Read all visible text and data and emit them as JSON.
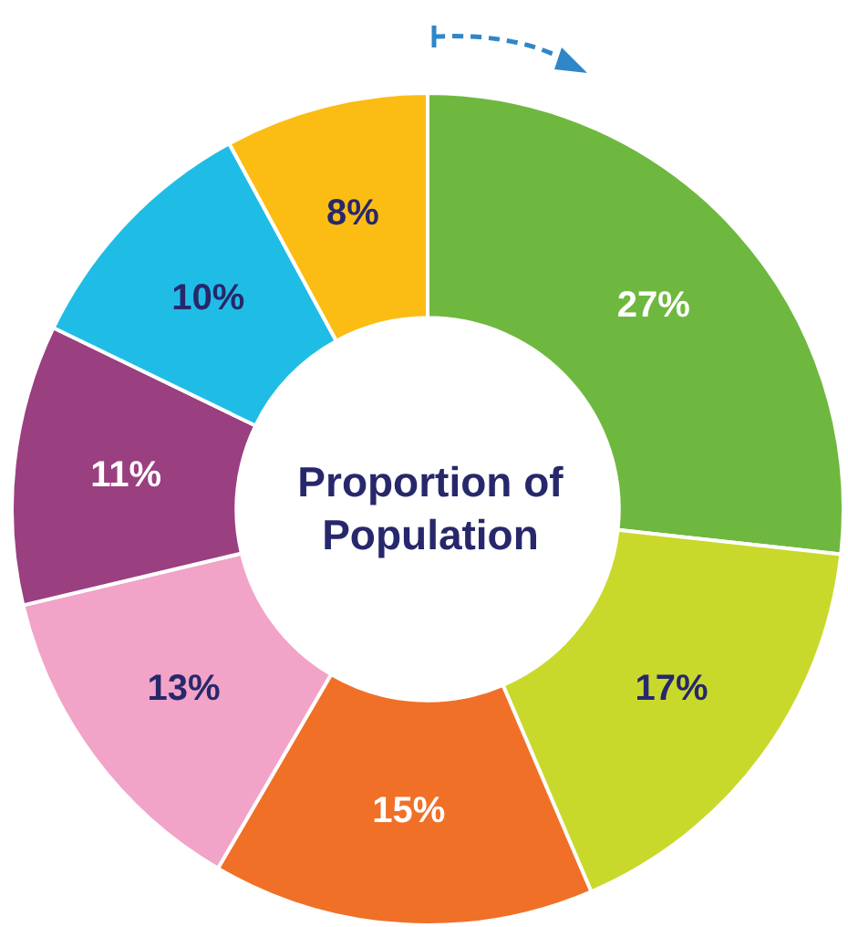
{
  "chart_data": {
    "type": "donut",
    "title": "Proportion of Population",
    "categories": [
      null,
      null,
      null,
      null,
      null,
      null,
      null
    ],
    "values": [
      27,
      17,
      15,
      13,
      11,
      10,
      8
    ],
    "value_labels": [
      "27%",
      "17%",
      "15%",
      "13%",
      "11%",
      "10%",
      "8%"
    ],
    "colors": [
      "#6fb83f",
      "#c9d92c",
      "#f07028",
      "#f2a3c8",
      "#9a3f80",
      "#1fbde6",
      "#fbbd14"
    ],
    "legend": false
  }
}
